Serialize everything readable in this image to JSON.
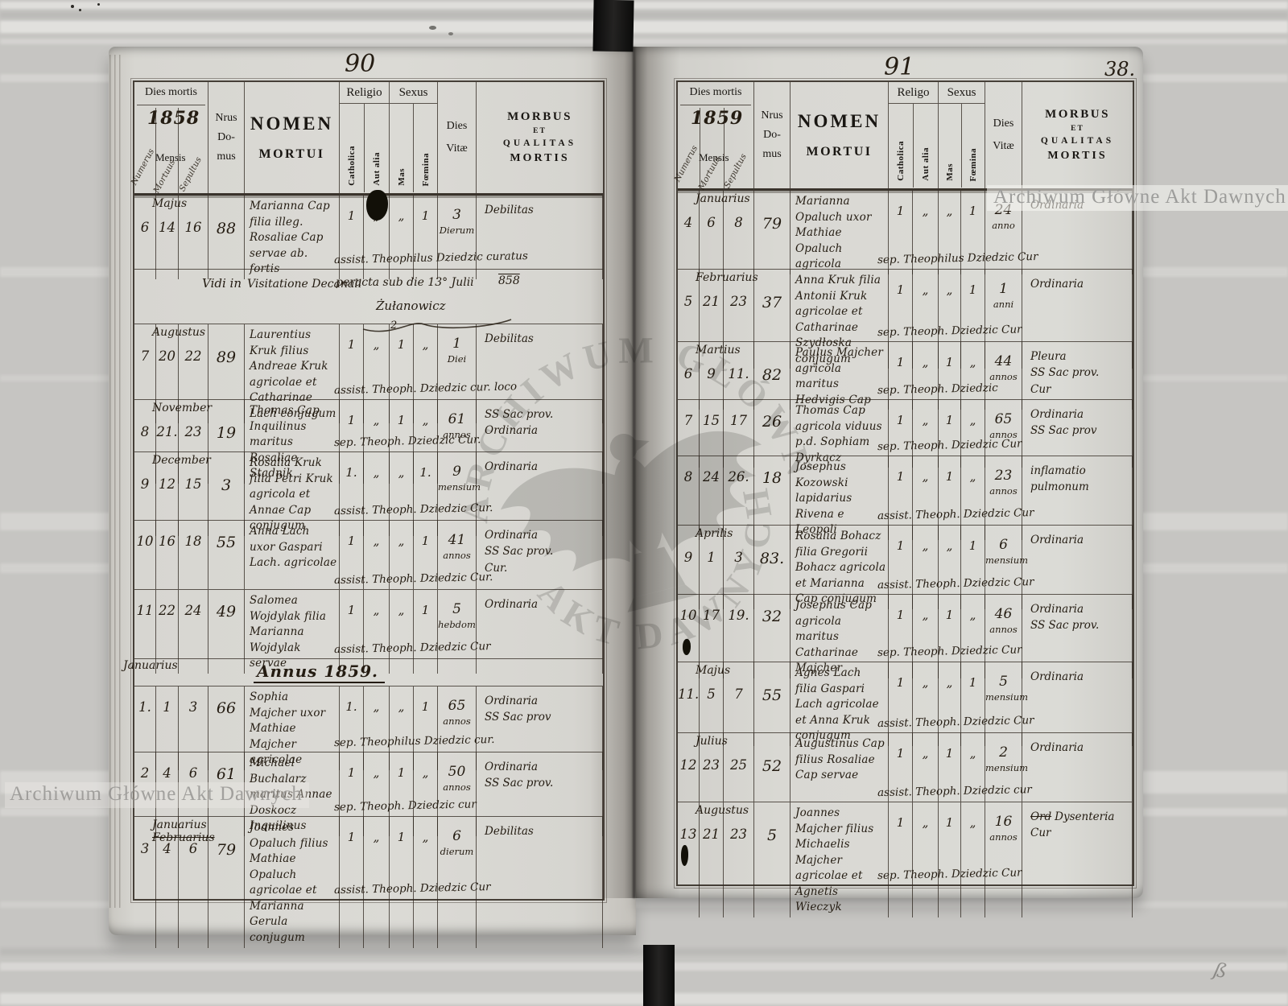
{
  "scan": {
    "page_number_left": "90",
    "page_number_right": "91",
    "folio_number": "38.",
    "watermark_text": "Archiwum Główne Akt Dawnych",
    "stamp_arc_top": "ARCHIWUM GŁÓWNE",
    "stamp_arc_bottom": "AKT DAWNYCH",
    "corner_mark": "ß"
  },
  "left_page": {
    "header": {
      "dies_mortis": "Dies mortis",
      "year": "1858",
      "mensis": "Mensis",
      "diag_numerus": "Numerus",
      "diag_mortuus": "Mortuus",
      "diag_sepultus": "Sepultus",
      "nrus_domus_lines": [
        "Nrus",
        "Do-",
        "mus"
      ],
      "nomen_lines": [
        "NOMEN",
        "MORTUI"
      ],
      "religio": "Religio",
      "sexus": "Sexus",
      "catholica": "Catholica",
      "aut_alia": "Aut alia",
      "mas": "Mas",
      "foemina": "Fœmina",
      "dies_vitae_lines": [
        "Dies",
        "Vitæ"
      ],
      "morbus_lines": [
        "MORBUS",
        "ET",
        "QUALITAS",
        "MORTIS"
      ]
    },
    "rows": [
      {
        "type": "entry",
        "nr": "6",
        "month": "Majus",
        "died": "14",
        "buried": "16",
        "house": "88",
        "name": "Marianna Cap filia illeg. Rosaliae Cap servae ab. fortis",
        "cath": "1",
        "aut": "„",
        "mas": "„",
        "foem": "1",
        "vitae_num": "3",
        "vitae_unit": "Dierum",
        "note": "assist. Theophilus Dziedzic curatus",
        "morbus": "Debilitas"
      },
      {
        "type": "vidi",
        "lead": "Vidi in",
        "title": "Visitatione Decanali",
        "note": "peracta sub die 13° Julii",
        "year": "858",
        "signature": "Żułanowicz",
        "paraph": "2"
      },
      {
        "type": "entry",
        "nr": "7",
        "month": "Augustus",
        "died": "20",
        "buried": "22",
        "house": "89",
        "name": "Laurentius Kruk filius Andreae Kruk agricolae et Catharinae Lach conjugum",
        "cath": "1",
        "aut": "„",
        "mas": "1",
        "foem": "„",
        "vitae_num": "1",
        "vitae_unit": "Diei",
        "note": "assist. Theoph. Dziedzic cur. loco",
        "morbus": "Debilitas"
      },
      {
        "type": "entry",
        "nr": "8",
        "month": "November",
        "died": "21.",
        "buried": "23",
        "house": "19",
        "name": "Thomas Cap Inquilinus maritus Rosaliae Stadnik",
        "cath": "1",
        "aut": "„",
        "mas": "1",
        "foem": "„",
        "vitae_num": "61",
        "vitae_unit": "annos",
        "note": "sep. Theoph. Dziedzic Cur.",
        "morbus": "SS Sac prov.\nOrdinaria"
      },
      {
        "type": "entry",
        "nr": "9",
        "month": "December",
        "died": "12",
        "buried": "15",
        "house": "3",
        "name": "Rosalia Kruk filia Petri Kruk agricola et Annae Cap conjugum",
        "cath": "1.",
        "aut": "„",
        "mas": "„",
        "foem": "1.",
        "vitae_num": "9",
        "vitae_unit": "mensium",
        "note": "assist. Theoph. Dziedzic Cur.",
        "morbus": "Ordinaria"
      },
      {
        "type": "entry",
        "nr": "10",
        "died": "16",
        "buried": "18",
        "house": "55",
        "name": "Anna Lach uxor Gaspari Lach. agricolae",
        "cath": "1",
        "aut": "„",
        "mas": "„",
        "foem": "1",
        "vitae_num": "41",
        "vitae_unit": "annos",
        "note": "assist. Theoph. Dziedzic Cur.",
        "morbus": "Ordinaria\nSS Sac prov.\nCur."
      },
      {
        "type": "entry",
        "nr": "11",
        "died": "22",
        "buried": "24",
        "house": "49",
        "name": "Salomea Wojdylak filia Marianna Wojdylak servae",
        "cath": "1",
        "aut": "„",
        "mas": "„",
        "foem": "1",
        "vitae_num": "5",
        "vitae_unit": "hebdom",
        "note": "assist. Theoph. Dziedzic Cur",
        "morbus": "Ordinaria"
      },
      {
        "type": "annus",
        "margin_month": "Januarius",
        "title": "Annus 1859."
      },
      {
        "type": "entry",
        "nr": "1.",
        "died": "1",
        "buried": "3",
        "house": "66",
        "name": "Sophia Majcher uxor Mathiae Majcher agricolae",
        "cath": "1.",
        "aut": "„",
        "mas": "„",
        "foem": "1",
        "vitae_num": "65",
        "vitae_unit": "annos",
        "note": "sep. Theophilus Dziedzic cur.",
        "morbus": "Ordinaria\nSS Sac prov"
      },
      {
        "type": "entry",
        "nr": "2",
        "died": "4",
        "buried": "6",
        "house": "61",
        "name": "Michael Buchalarz maritus Annae Doskocz Inquilinus",
        "cath": "1",
        "aut": "„",
        "mas": "1",
        "foem": "„",
        "vitae_num": "50",
        "vitae_unit": "annos",
        "note": "sep. Theoph. Dziedzic cur",
        "morbus": "Ordinaria\nSS Sac prov."
      },
      {
        "type": "entry",
        "nr": "3",
        "month": "Januarius",
        "month2": "Februarius",
        "died": "4",
        "buried": "6",
        "house": "79",
        "name": "Joannes Opaluch filius Mathiae Opaluch agricolae et Marianna Gerula conjugum",
        "cath": "1",
        "aut": "„",
        "mas": "1",
        "foem": "„",
        "vitae_num": "6",
        "vitae_unit": "dierum",
        "note": "assist. Theoph. Dziedzic Cur",
        "morbus": "Debilitas"
      }
    ]
  },
  "right_page": {
    "header": {
      "dies_mortis": "Dies mortis",
      "year": "1859",
      "mensis": "Mensis",
      "diag_numerus": "Numerus",
      "diag_mortuus": "Mortuus",
      "diag_sepultus": "Sepultus",
      "nrus_domus_lines": [
        "Nrus",
        "Do-",
        "mus"
      ],
      "nomen_lines": [
        "NOMEN",
        "MORTUI"
      ],
      "religio": "Religo",
      "sexus": "Sexus",
      "catholica": "Catholica",
      "aut_alia": "Aut alia",
      "mas": "Mas",
      "foemina": "Fœmina",
      "dies_vitae_lines": [
        "Dies",
        "Vitæ"
      ],
      "morbus_lines": [
        "MORBUS",
        "ET",
        "QUALITAS",
        "MORTIS"
      ]
    },
    "rows": [
      {
        "type": "entry",
        "nr": "4",
        "month": "Januarius",
        "died": "6",
        "buried": "8",
        "house": "79",
        "name": "Marianna Opaluch uxor Mathiae Opaluch agricola",
        "cath": "1",
        "aut": "„",
        "mas": "„",
        "foem": "1",
        "vitae_num": "24",
        "vitae_unit": "anno",
        "note": "sep. Theophilus Dziedzic Cur",
        "morbus": "Ordinaria"
      },
      {
        "type": "entry",
        "nr": "5",
        "month": "Februarius",
        "died": "21",
        "buried": "23",
        "house": "37",
        "name": "Anna Kruk filia Antonii Kruk agricolae et Catharinae Szydłoska conjugum",
        "cath": "1",
        "aut": "„",
        "mas": "„",
        "foem": "1",
        "vitae_num": "1",
        "vitae_unit": "anni",
        "note": "sep. Theoph. Dziedzic Cur",
        "morbus": "Ordinaria"
      },
      {
        "type": "entry",
        "nr": "6",
        "month": "Martius",
        "died": "9",
        "buried": "11.",
        "house": "82",
        "name": "Paulus Majcher agricola maritus Hedvigis Cap",
        "cath": "1",
        "aut": "„",
        "mas": "1",
        "foem": "„",
        "vitae_num": "44",
        "vitae_unit": "annos",
        "note": "sep. Theoph. Dziedzic",
        "morbus": "Pleura\nSS Sac prov.\nCur"
      },
      {
        "type": "entry",
        "nr": "7",
        "died": "15",
        "buried": "17",
        "house": "26",
        "name": "Thomas Cap agricola viduus p.d. Sophiam Dyrkacz",
        "cath": "1",
        "aut": "„",
        "mas": "1",
        "foem": "„",
        "vitae_num": "65",
        "vitae_unit": "annos",
        "note": "sep. Theoph. Dziedzic Cur",
        "morbus": "Ordinaria\nSS Sac prov"
      },
      {
        "type": "entry",
        "nr": "8",
        "died": "24",
        "buried": "26.",
        "house": "18",
        "name": "Josephus Kozowski lapidarius Rivena e Leopoli",
        "cath": "1",
        "aut": "„",
        "mas": "1",
        "foem": "„",
        "vitae_num": "23",
        "vitae_unit": "annos",
        "note": "assist. Theoph. Dziedzic Cur",
        "morbus": "inflamatio\npulmonum"
      },
      {
        "type": "entry",
        "nr": "9",
        "month": "Aprilis",
        "died": "1",
        "buried": "3",
        "house": "83.",
        "name": "Rosalia Bohacz filia Gregorii Bohacz agricola et Marianna Cap conjugum",
        "cath": "1",
        "aut": "„",
        "mas": "„",
        "foem": "1",
        "vitae_num": "6",
        "vitae_unit": "mensium",
        "note": "assist. Theoph. Dziedzic Cur",
        "morbus": "Ordinaria"
      },
      {
        "type": "entry",
        "nr": "10",
        "died": "17",
        "buried": "19.",
        "house": "32",
        "name": "Josephus Cap agricola maritus Catharinae Majcher",
        "cath": "1",
        "aut": "„",
        "mas": "1",
        "foem": "„",
        "vitae_num": "46",
        "vitae_unit": "annos",
        "note": "sep. Theoph. Dziedzic Cur",
        "morbus": "Ordinaria\nSS Sac prov."
      },
      {
        "type": "entry",
        "nr": "11.",
        "month": "Majus",
        "died": "5",
        "buried": "7",
        "house": "55",
        "name": "Agnes Lach filia Gaspari Lach agricolae et Anna Kruk conjugum",
        "cath": "1",
        "aut": "„",
        "mas": "„",
        "foem": "1",
        "vitae_num": "5",
        "vitae_unit": "mensium",
        "note": "assist. Theoph. Dziedzic Cur",
        "morbus": "Ordinaria"
      },
      {
        "type": "entry",
        "nr": "12",
        "month": "Julius",
        "died": "23",
        "buried": "25",
        "house": "52",
        "name": "Augustinus Cap filius Rosaliae Cap servae",
        "cath": "1",
        "aut": "„",
        "mas": "1",
        "foem": "„",
        "vitae_num": "2",
        "vitae_unit": "mensium",
        "note": "assist. Theoph. Dziedzic cur",
        "morbus": "Ordinaria"
      },
      {
        "type": "entry",
        "nr": "13",
        "month": "Augustus",
        "died": "21",
        "buried": "23",
        "house": "5",
        "name": "Joannes Majcher filius Michaelis Majcher agricolae et Agnetis Wieczyk",
        "cath": "1",
        "aut": "„",
        "mas": "1",
        "foem": "„",
        "vitae_num": "16",
        "vitae_unit": "annos",
        "note": "sep. Theoph. Dziedzic Cur",
        "morbus_struck": "Ord",
        "morbus": "Dysenteria\nCur"
      }
    ]
  }
}
